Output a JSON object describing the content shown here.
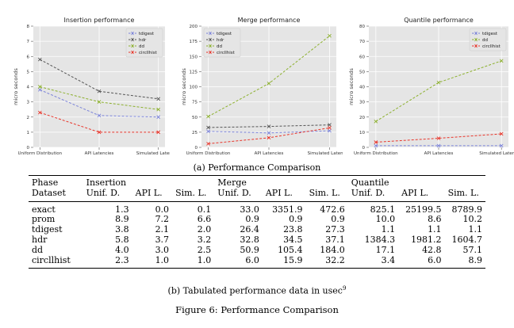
{
  "chart_data": [
    {
      "type": "line",
      "title": "Insertion performance",
      "xlabel": "",
      "ylabel": "micro seconds",
      "categories": [
        "Uniform Distribution",
        "API Latencies",
        "Simulated Latencies"
      ],
      "ylim": [
        0,
        8
      ],
      "yticks": [
        0,
        1,
        2,
        3,
        4,
        5,
        6,
        7,
        8
      ],
      "legend_position": "top-right",
      "grid": true,
      "series": [
        {
          "name": "tdigest",
          "color": "#7b83d9",
          "values": [
            3.8,
            2.1,
            2.0
          ]
        },
        {
          "name": "hdr",
          "color": "#555555",
          "values": [
            5.8,
            3.7,
            3.2
          ]
        },
        {
          "name": "dd",
          "color": "#8cb02e",
          "values": [
            4.0,
            3.0,
            2.5
          ]
        },
        {
          "name": "circllhist",
          "color": "#e8352a",
          "values": [
            2.3,
            1.0,
            1.0
          ]
        }
      ]
    },
    {
      "type": "line",
      "title": "Merge performance",
      "xlabel": "",
      "ylabel": "micro seconds",
      "categories": [
        "Uniform Distribution",
        "API Latencies",
        "Simulated Latencies"
      ],
      "ylim": [
        0,
        200
      ],
      "yticks": [
        0,
        25,
        50,
        75,
        100,
        125,
        150,
        175,
        200
      ],
      "legend_position": "top-left",
      "grid": true,
      "series": [
        {
          "name": "tdigest",
          "color": "#7b83d9",
          "values": [
            26.4,
            23.8,
            27.3
          ]
        },
        {
          "name": "hdr",
          "color": "#555555",
          "values": [
            32.8,
            34.5,
            37.1
          ]
        },
        {
          "name": "dd",
          "color": "#8cb02e",
          "values": [
            50.9,
            105.4,
            184.0
          ]
        },
        {
          "name": "circllhist",
          "color": "#e8352a",
          "values": [
            6.0,
            15.9,
            32.2
          ]
        }
      ]
    },
    {
      "type": "line",
      "title": "Quantile performance",
      "xlabel": "",
      "ylabel": "micro seconds",
      "categories": [
        "Uniform Distribution",
        "API Latencies",
        "Simulated Latencies"
      ],
      "ylim": [
        0,
        80
      ],
      "yticks": [
        0,
        10,
        20,
        30,
        40,
        50,
        60,
        70,
        80
      ],
      "legend_position": "top-right",
      "grid": true,
      "series": [
        {
          "name": "tdigest",
          "color": "#7b83d9",
          "values": [
            1.1,
            1.1,
            1.1
          ]
        },
        {
          "name": "dd",
          "color": "#8cb02e",
          "values": [
            17.1,
            42.8,
            57.1
          ]
        },
        {
          "name": "circllhist",
          "color": "#e8352a",
          "values": [
            3.4,
            6.0,
            8.9
          ]
        }
      ]
    }
  ],
  "captions": {
    "a": "(a) Performance Comparison",
    "b_text": "(b) Tabulated performance data in usec",
    "b_sup": "9",
    "figure": "Figure 6: Performance Comparison"
  },
  "table": {
    "header_row1": [
      "Phase",
      "Insertion",
      "",
      "",
      "Merge",
      "",
      "",
      "Quantile",
      "",
      ""
    ],
    "header_row2": [
      "Dataset",
      "Unif. D.",
      "API L.",
      "Sim. L.",
      "Unif. D.",
      "API L.",
      "Sim. L.",
      "Unif. D.",
      "API L.",
      "Sim. L."
    ],
    "rows": [
      [
        "exact",
        "1.3",
        "0.0",
        "0.1",
        "33.0",
        "3351.9",
        "472.6",
        "825.1",
        "25199.5",
        "8789.9"
      ],
      [
        "prom",
        "8.9",
        "7.2",
        "6.6",
        "0.9",
        "0.9",
        "0.9",
        "10.0",
        "8.6",
        "10.2"
      ],
      [
        "tdigest",
        "3.8",
        "2.1",
        "2.0",
        "26.4",
        "23.8",
        "27.3",
        "1.1",
        "1.1",
        "1.1"
      ],
      [
        "hdr",
        "5.8",
        "3.7",
        "3.2",
        "32.8",
        "34.5",
        "37.1",
        "1384.3",
        "1981.2",
        "1604.7"
      ],
      [
        "dd",
        "4.0",
        "3.0",
        "2.5",
        "50.9",
        "105.4",
        "184.0",
        "17.1",
        "42.8",
        "57.1"
      ],
      [
        "circllhist",
        "2.3",
        "1.0",
        "1.0",
        "6.0",
        "15.9",
        "32.2",
        "3.4",
        "6.0",
        "8.9"
      ]
    ]
  }
}
